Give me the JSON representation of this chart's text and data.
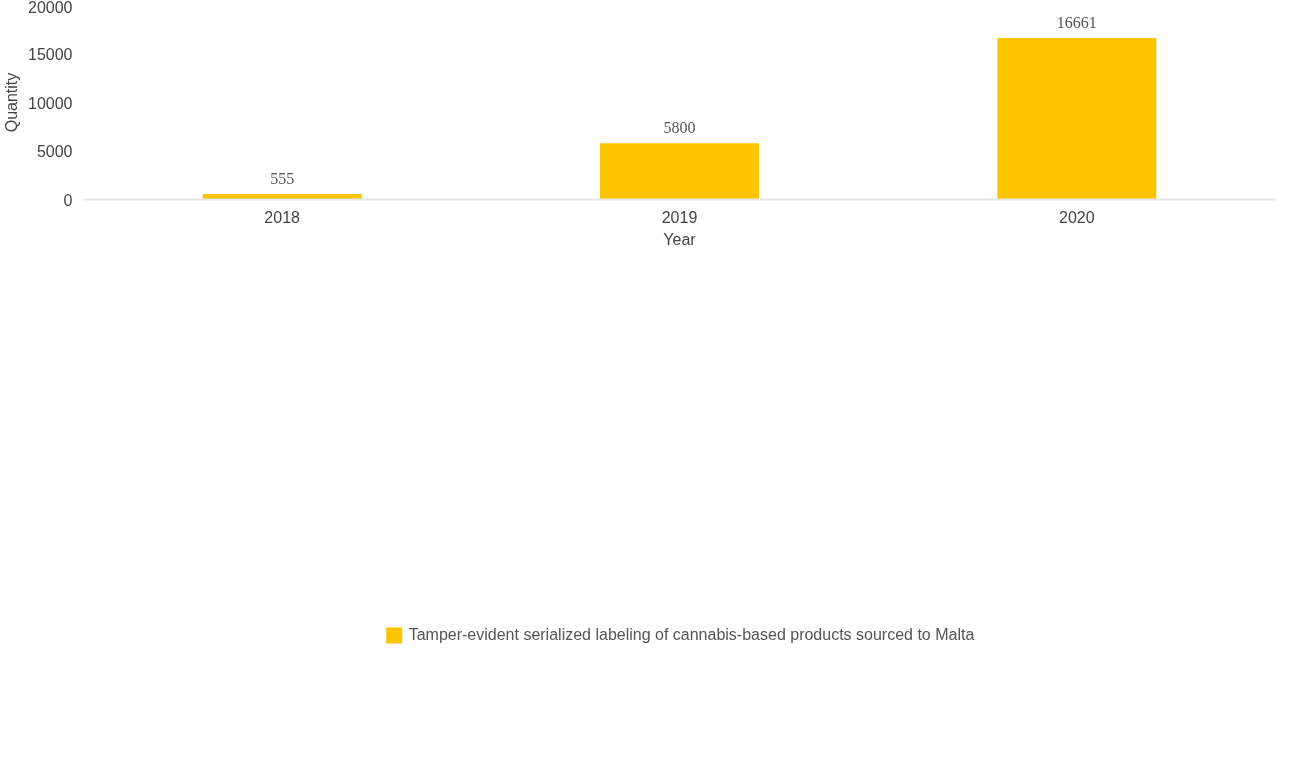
{
  "chart_data": {
    "type": "bar",
    "xlabel": "Year",
    "ylabel": "Quantity",
    "categories": [
      "2018",
      "2019",
      "2020"
    ],
    "series": [
      {
        "name": "Tamper-evident serialized labeling of cannabis-based products sourced to Malta",
        "color": "#fcc500",
        "values": [
          555,
          5800,
          16661
        ]
      }
    ],
    "ylim": [
      0,
      20000
    ],
    "yticks": [
      0,
      5000,
      10000,
      15000,
      20000
    ],
    "data_labels": true,
    "grid": false,
    "legend": "bottom"
  }
}
